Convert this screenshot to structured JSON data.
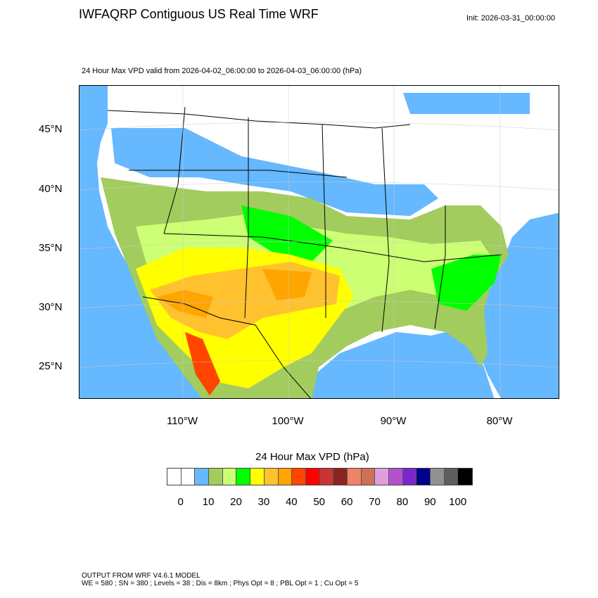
{
  "title": "IWFAQRP Contiguous US Real Time WRF",
  "init": "Init: 2026-03-31_00:00:00",
  "subtitle": "24 Hour Max VPD valid from 2026-04-02_06:00:00 to 2026-04-03_06:00:00   (hPa)",
  "lat_labels": [
    "45°N",
    "40°N",
    "35°N",
    "30°N",
    "25°N"
  ],
  "lon_labels": [
    "110°W",
    "100°W",
    "90°W",
    "80°W"
  ],
  "colorbar": {
    "title": "24 Hour Max VPD  (hPa)",
    "colors": [
      "#ffffff",
      "#ffffff",
      "#66b8ff",
      "#a2cc5e",
      "#ccff73",
      "#00ff00",
      "#ffff00",
      "#ffc22e",
      "#ffa500",
      "#ff4500",
      "#ff0000",
      "#cc3333",
      "#8b2323",
      "#f08266",
      "#cd7054",
      "#dda0dd",
      "#b452cd",
      "#7b26cd",
      "#00008b",
      "#919191",
      "#5e5e5e",
      "#000000"
    ],
    "labels": [
      "0",
      "10",
      "20",
      "30",
      "40",
      "50",
      "60",
      "70",
      "80",
      "90",
      "100"
    ]
  },
  "footer": {
    "line1": "OUTPUT FROM WRF V4.6.1 MODEL",
    "line2": "WE = 580 ; SN = 380 ; Levels = 38 ; Dis = 8km ; Phys Opt = 8 ; PBL Opt = 1 ; Cu Opt = 5"
  }
}
